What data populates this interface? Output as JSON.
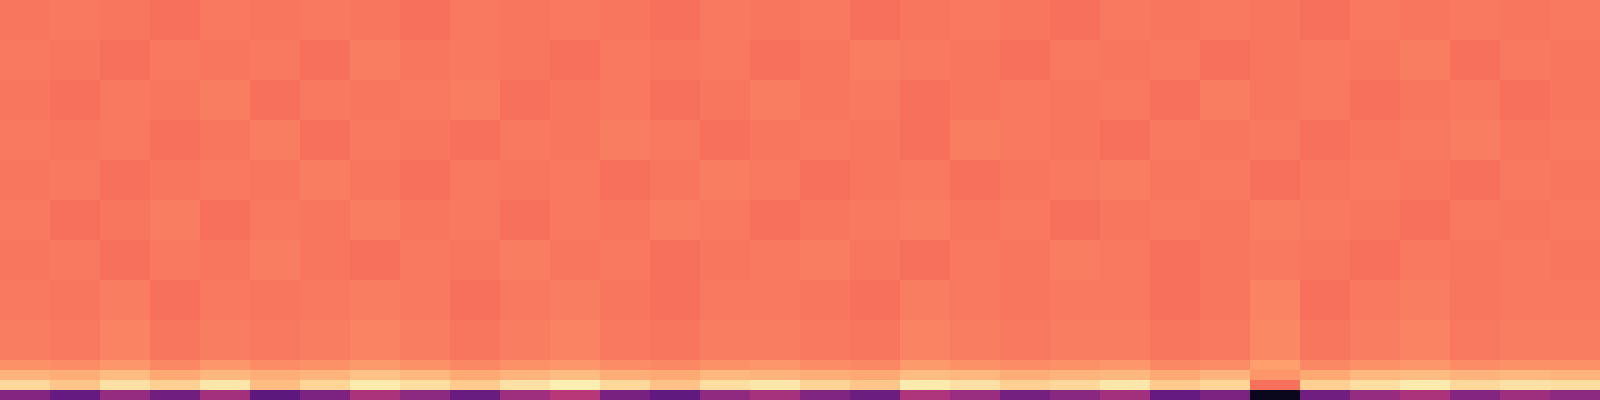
{
  "chart_data": {
    "type": "heatmap",
    "color": "magma",
    "tick_labels": false,
    "grid": false,
    "x": [
      0,
      1,
      2,
      3,
      4,
      5,
      6,
      7,
      8,
      9,
      10,
      11,
      12,
      13,
      14,
      15,
      16,
      17,
      18,
      19,
      20,
      21,
      22,
      23,
      24,
      25,
      26,
      27,
      28,
      29,
      30,
      31,
      32
    ],
    "y": [
      0,
      1,
      2,
      3,
      4,
      8,
      12,
      16,
      20,
      24,
      28,
      32,
      36,
      40
    ],
    "xlim": [
      0,
      32
    ],
    "ylim": [
      0,
      40
    ],
    "zlim": [
      0,
      1
    ],
    "cells": [
      [
        0.38,
        0.3,
        0.42,
        0.33,
        0.45,
        0.28,
        0.36,
        0.47,
        0.4,
        0.31,
        0.44,
        0.5,
        0.35,
        0.29,
        0.41,
        0.46,
        0.37,
        0.32,
        0.48,
        0.43,
        0.34,
        0.39,
        0.45,
        0.3,
        0.36,
        0.05,
        0.33,
        0.42,
        0.47,
        0.38,
        0.44,
        0.4
      ],
      [
        0.92,
        0.88,
        0.94,
        0.9,
        0.95,
        0.86,
        0.91,
        0.96,
        0.93,
        0.89,
        0.94,
        0.97,
        0.92,
        0.87,
        0.93,
        0.95,
        0.91,
        0.88,
        0.96,
        0.94,
        0.9,
        0.92,
        0.95,
        0.89,
        0.91,
        0.7,
        0.9,
        0.93,
        0.96,
        0.92,
        0.94,
        0.93
      ],
      [
        0.84,
        0.83,
        0.86,
        0.82,
        0.85,
        0.83,
        0.84,
        0.87,
        0.85,
        0.82,
        0.84,
        0.86,
        0.83,
        0.82,
        0.85,
        0.84,
        0.83,
        0.82,
        0.86,
        0.85,
        0.83,
        0.84,
        0.85,
        0.82,
        0.84,
        0.78,
        0.82,
        0.85,
        0.86,
        0.84,
        0.85,
        0.84
      ],
      [
        0.77,
        0.76,
        0.78,
        0.75,
        0.78,
        0.76,
        0.77,
        0.79,
        0.77,
        0.75,
        0.77,
        0.78,
        0.76,
        0.75,
        0.77,
        0.78,
        0.76,
        0.75,
        0.79,
        0.77,
        0.76,
        0.77,
        0.78,
        0.75,
        0.76,
        0.8,
        0.75,
        0.77,
        0.78,
        0.76,
        0.77,
        0.77
      ],
      [
        0.73,
        0.72,
        0.74,
        0.71,
        0.73,
        0.72,
        0.73,
        0.74,
        0.73,
        0.71,
        0.73,
        0.74,
        0.72,
        0.71,
        0.73,
        0.73,
        0.72,
        0.71,
        0.74,
        0.73,
        0.72,
        0.73,
        0.73,
        0.71,
        0.72,
        0.75,
        0.71,
        0.73,
        0.74,
        0.72,
        0.73,
        0.73
      ],
      [
        0.72,
        0.71,
        0.73,
        0.7,
        0.72,
        0.71,
        0.72,
        0.73,
        0.72,
        0.7,
        0.72,
        0.73,
        0.71,
        0.7,
        0.72,
        0.72,
        0.71,
        0.7,
        0.73,
        0.72,
        0.71,
        0.72,
        0.72,
        0.7,
        0.71,
        0.74,
        0.7,
        0.72,
        0.73,
        0.71,
        0.72,
        0.72
      ],
      [
        0.71,
        0.72,
        0.7,
        0.72,
        0.71,
        0.73,
        0.71,
        0.7,
        0.72,
        0.71,
        0.73,
        0.71,
        0.72,
        0.7,
        0.71,
        0.72,
        0.73,
        0.71,
        0.7,
        0.72,
        0.71,
        0.73,
        0.72,
        0.7,
        0.71,
        0.72,
        0.71,
        0.7,
        0.72,
        0.71,
        0.72,
        0.71
      ],
      [
        0.72,
        0.7,
        0.71,
        0.73,
        0.7,
        0.72,
        0.71,
        0.73,
        0.71,
        0.72,
        0.7,
        0.72,
        0.71,
        0.73,
        0.72,
        0.7,
        0.71,
        0.72,
        0.73,
        0.71,
        0.72,
        0.7,
        0.71,
        0.72,
        0.71,
        0.73,
        0.72,
        0.71,
        0.7,
        0.72,
        0.71,
        0.72
      ],
      [
        0.71,
        0.72,
        0.7,
        0.71,
        0.72,
        0.71,
        0.73,
        0.71,
        0.7,
        0.72,
        0.71,
        0.72,
        0.7,
        0.71,
        0.73,
        0.72,
        0.7,
        0.71,
        0.72,
        0.7,
        0.71,
        0.72,
        0.73,
        0.71,
        0.72,
        0.7,
        0.71,
        0.72,
        0.71,
        0.7,
        0.72,
        0.71
      ],
      [
        0.72,
        0.71,
        0.72,
        0.7,
        0.71,
        0.73,
        0.7,
        0.72,
        0.71,
        0.7,
        0.72,
        0.71,
        0.73,
        0.72,
        0.7,
        0.71,
        0.72,
        0.71,
        0.7,
        0.73,
        0.72,
        0.71,
        0.7,
        0.72,
        0.71,
        0.72,
        0.7,
        0.71,
        0.72,
        0.73,
        0.71,
        0.72
      ],
      [
        0.71,
        0.7,
        0.72,
        0.71,
        0.73,
        0.7,
        0.72,
        0.71,
        0.72,
        0.73,
        0.7,
        0.71,
        0.72,
        0.7,
        0.71,
        0.73,
        0.71,
        0.72,
        0.7,
        0.71,
        0.72,
        0.71,
        0.72,
        0.7,
        0.73,
        0.71,
        0.72,
        0.7,
        0.71,
        0.72,
        0.7,
        0.71
      ],
      [
        0.72,
        0.71,
        0.7,
        0.72,
        0.71,
        0.72,
        0.7,
        0.73,
        0.71,
        0.72,
        0.71,
        0.7,
        0.72,
        0.71,
        0.72,
        0.7,
        0.71,
        0.73,
        0.72,
        0.71,
        0.7,
        0.72,
        0.71,
        0.72,
        0.7,
        0.71,
        0.72,
        0.71,
        0.73,
        0.7,
        0.72,
        0.71
      ],
      [
        0.71,
        0.72,
        0.71,
        0.7,
        0.72,
        0.71,
        0.72,
        0.71,
        0.7,
        0.72,
        0.71,
        0.72,
        0.71,
        0.7,
        0.72,
        0.71,
        0.72,
        0.7,
        0.71,
        0.72,
        0.71,
        0.7,
        0.72,
        0.71,
        0.72,
        0.71,
        0.7,
        0.72,
        0.71,
        0.72,
        0.71,
        0.72
      ]
    ]
  }
}
